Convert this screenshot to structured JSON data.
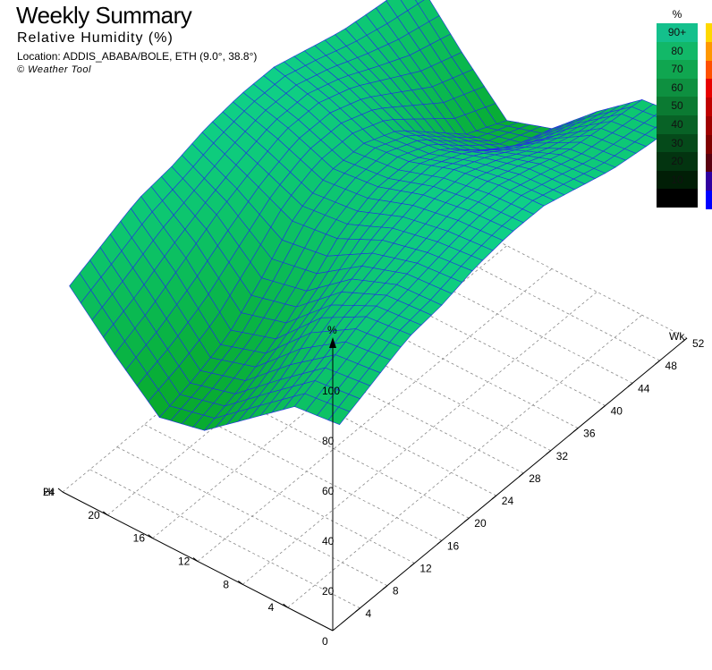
{
  "header": {
    "title": "Weekly Summary",
    "subtitle": "Relative Humidity (%)",
    "location": "Location: ADDIS_ABABA/BOLE, ETH (9.0°, 38.8°)",
    "credit": "© Weather Tool"
  },
  "legend": {
    "unit": "%",
    "entries": [
      {
        "label": "90+",
        "color": "#14c08c"
      },
      {
        "label": "80",
        "color": "#12b868"
      },
      {
        "label": "70",
        "color": "#10a650"
      },
      {
        "label": "60",
        "color": "#0e9040"
      },
      {
        "label": "50",
        "color": "#0b7a32"
      },
      {
        "label": "40",
        "color": "#086226"
      },
      {
        "label": "30",
        "color": "#054a1a"
      },
      {
        "label": "20",
        "color": "#033410"
      },
      {
        "label": "10",
        "color": "#011e06"
      },
      {
        "label": "",
        "color": "#000000"
      }
    ],
    "strip_colors": [
      "#ffd800",
      "#ff9800",
      "#ff5000",
      "#e80000",
      "#c00000",
      "#a00000",
      "#800000",
      "#5a0010",
      "#3000a0",
      "#0000ff"
    ]
  },
  "chart_data": {
    "type": "surface3d",
    "title": "Weekly Summary",
    "subtitle": "Relative Humidity (%)",
    "x_axis": {
      "label": "Wk",
      "ticks": [
        4,
        8,
        12,
        16,
        20,
        24,
        28,
        32,
        36,
        40,
        44,
        48,
        52
      ],
      "range": [
        0,
        52
      ]
    },
    "y_axis": {
      "label": "Hr",
      "ticks": [
        4,
        8,
        12,
        16,
        20,
        24
      ],
      "range": [
        0,
        24
      ]
    },
    "z_axis": {
      "label": "%",
      "ticks": [
        0,
        20,
        40,
        60,
        80,
        100
      ],
      "range": [
        0,
        100
      ]
    },
    "grid": true,
    "surface_colors": {
      "low": "#07a828",
      "high": "#0fd088",
      "mesh": "#2230e0"
    },
    "week_hr_anchor_humidity": {
      "weeks": [
        1,
        6,
        11,
        16,
        21,
        26,
        31,
        36,
        41,
        46,
        52
      ],
      "hours": [
        0,
        4,
        8,
        12,
        16,
        20,
        24
      ],
      "values": [
        [
          80,
          86,
          92,
          94,
          98,
          100,
          100,
          96,
          92,
          90,
          88
        ],
        [
          78,
          84,
          90,
          93,
          96,
          99,
          99,
          95,
          90,
          88,
          86
        ],
        [
          64,
          70,
          80,
          86,
          92,
          96,
          96,
          90,
          82,
          76,
          72
        ],
        [
          50,
          55,
          62,
          72,
          84,
          90,
          90,
          84,
          72,
          62,
          56
        ],
        [
          46,
          50,
          56,
          68,
          82,
          88,
          88,
          82,
          70,
          58,
          50
        ],
        [
          62,
          68,
          76,
          84,
          90,
          95,
          95,
          90,
          82,
          74,
          68
        ],
        [
          80,
          86,
          92,
          94,
          98,
          100,
          100,
          96,
          92,
          90,
          88
        ]
      ]
    }
  }
}
